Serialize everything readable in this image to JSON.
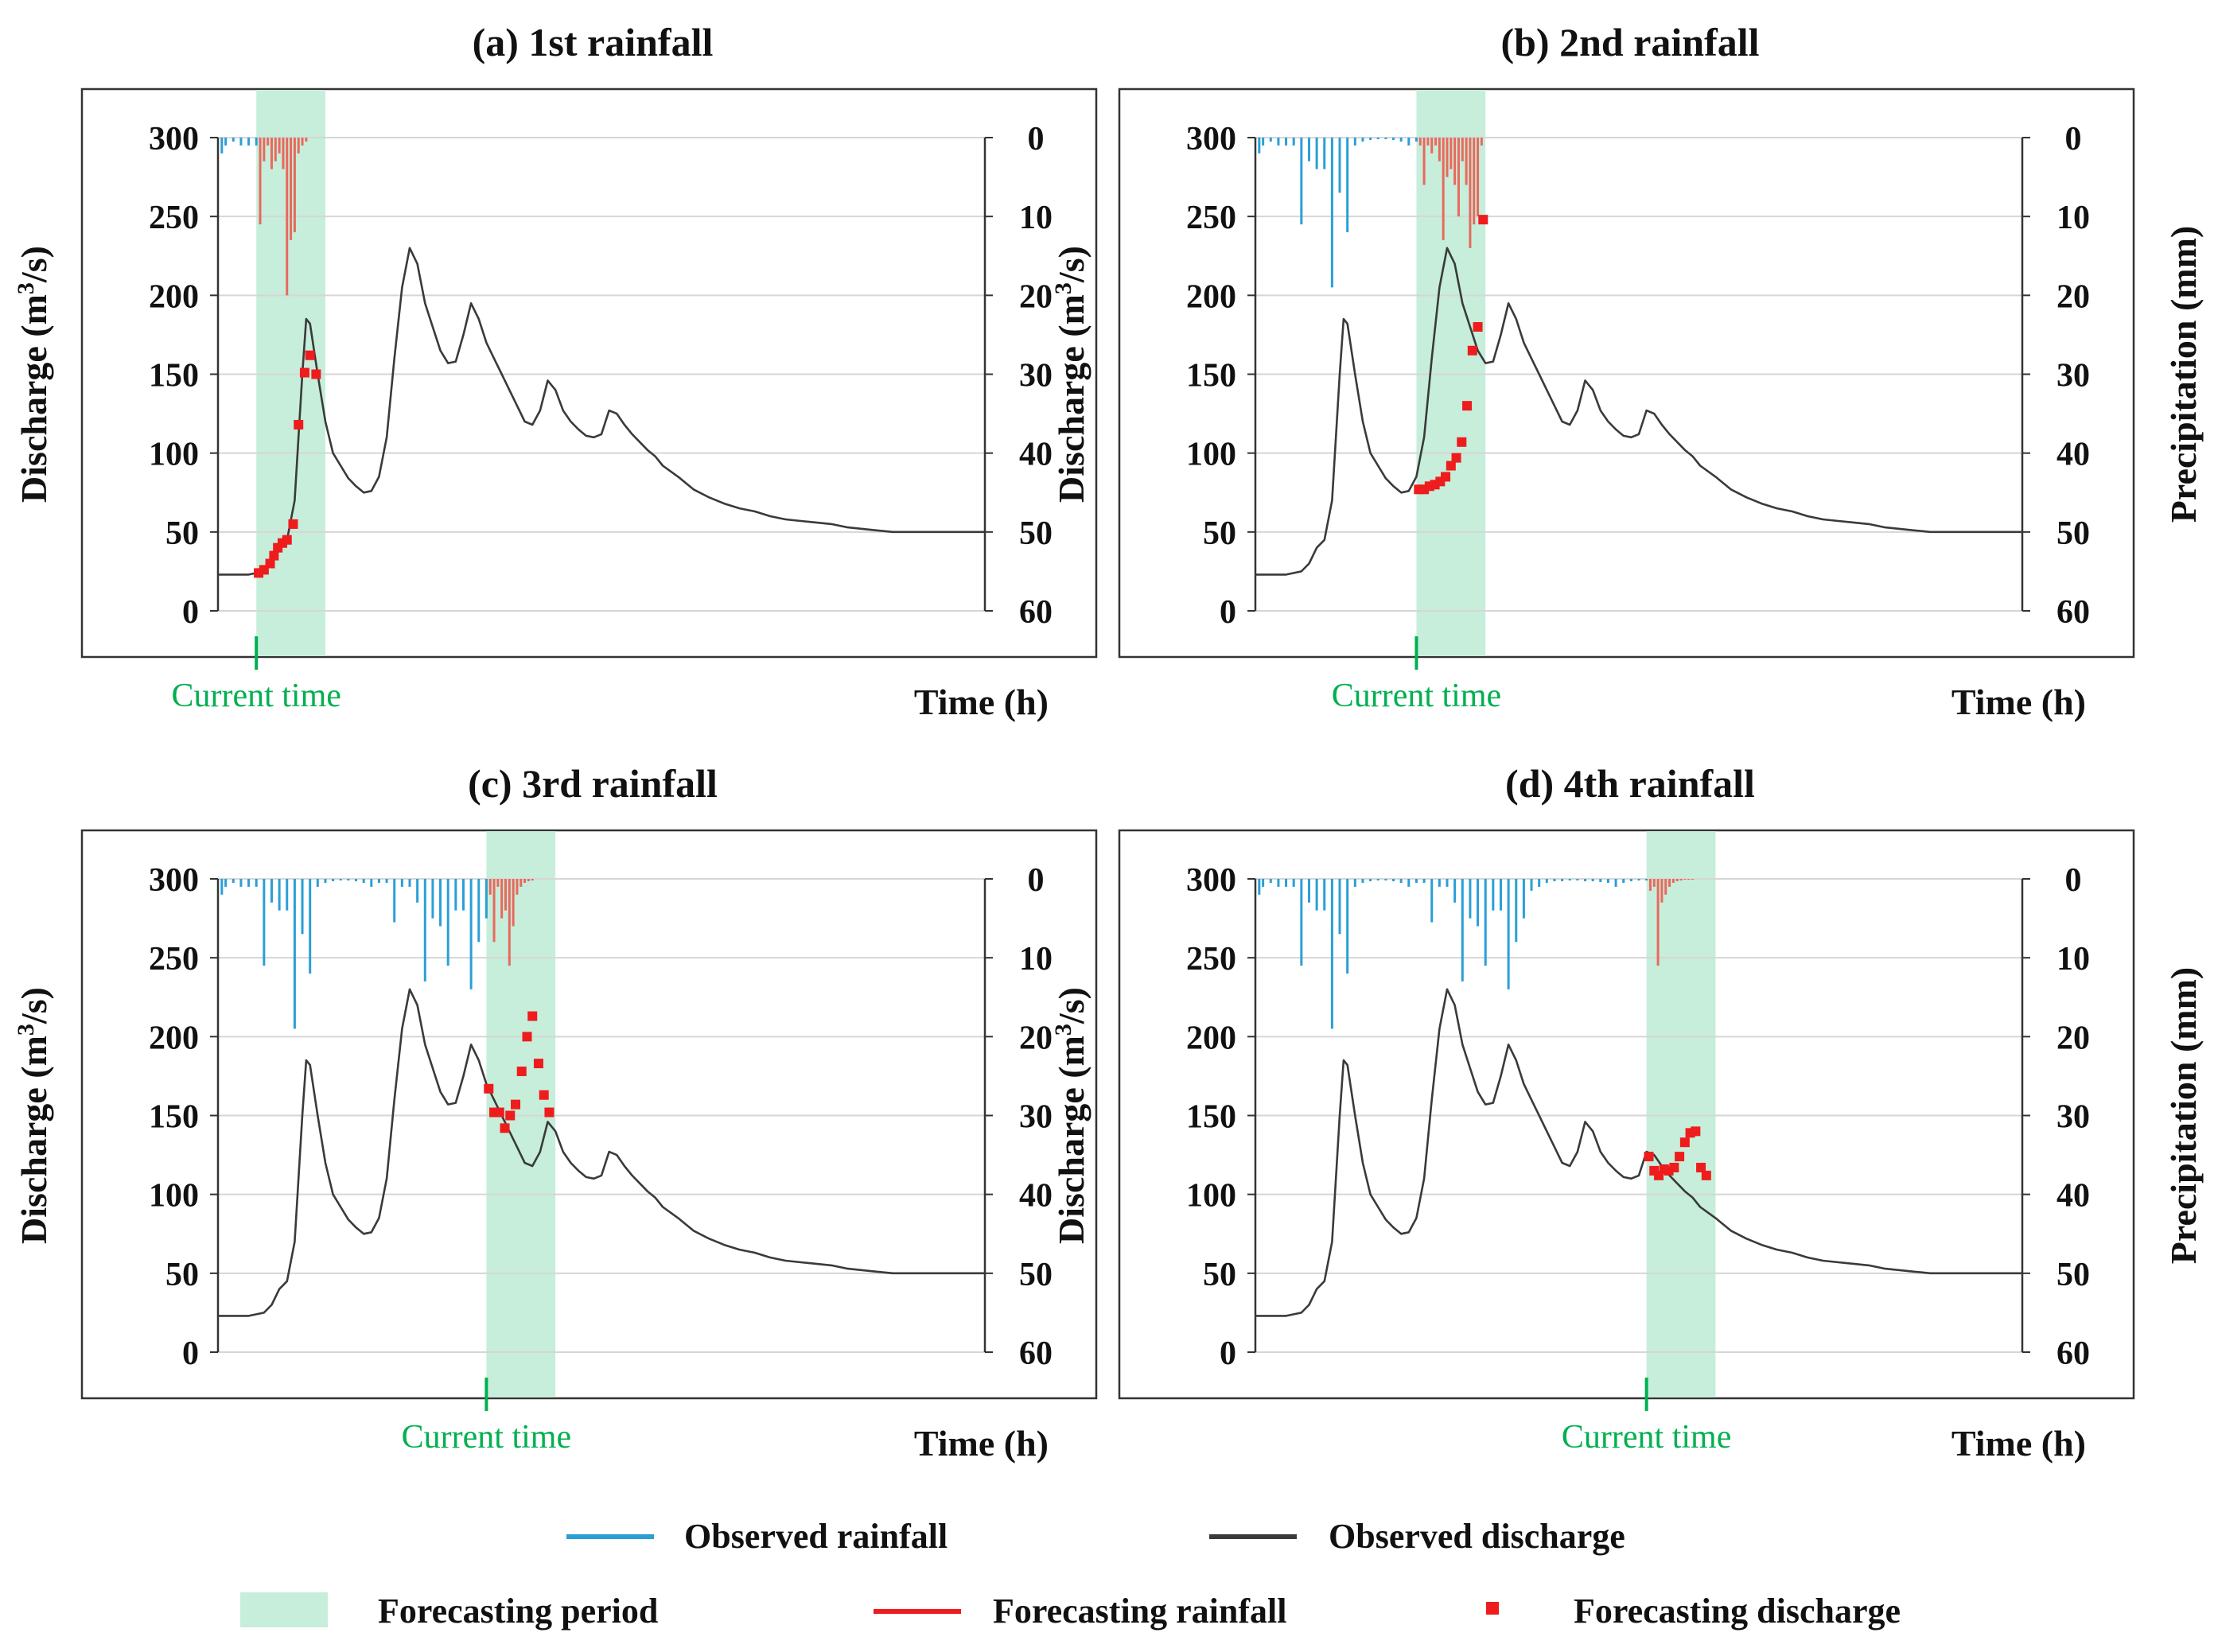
{
  "colors": {
    "observed_rainfall": "#2a9fd6",
    "forecast_rainfall": "#e8695c",
    "observed_discharge": "#3a3a3a",
    "forecast_discharge": "#ee1c1c",
    "forecast_period": "#c6eedb",
    "current_time": "#00b050",
    "grid": "#d6d6d6",
    "frame": "#333333"
  },
  "labels": {
    "discharge_axis": "Discharge (m",
    "discharge_axis_sup": "3",
    "discharge_axis_end": "/s)",
    "precip_axis": "Precipitation (mm)",
    "time_axis": "Time (h)",
    "current_time": "Current time"
  },
  "legend": {
    "observed_rainfall": "Observed rainfall",
    "observed_discharge": "Observed discharge",
    "forecasting_period": "Forecasting period",
    "forecasting_rainfall": "Forecasting rainfall",
    "forecasting_discharge": "Forecasting discharge"
  },
  "axes": {
    "discharge_ticks": [
      0,
      50,
      100,
      150,
      200,
      250,
      300
    ],
    "precip_ticks": [
      0,
      10,
      20,
      30,
      40,
      50,
      60
    ],
    "discharge_range": [
      0,
      300
    ],
    "precip_range": [
      0,
      60
    ],
    "time_range": [
      0,
      100
    ]
  },
  "shared": {
    "observed_discharge": {
      "t": [
        0,
        4,
        6,
        7,
        8,
        9,
        10,
        11,
        11.5,
        12,
        13,
        14,
        15,
        16,
        17,
        18,
        19,
        20,
        21,
        22,
        23,
        24,
        25,
        26,
        27,
        28,
        29,
        30,
        31,
        32,
        33,
        34,
        35,
        36,
        37,
        38,
        39,
        40,
        41,
        42,
        43,
        44,
        45,
        46,
        47,
        48,
        49,
        50,
        51,
        52,
        53,
        54,
        55,
        56,
        57,
        58,
        60,
        62,
        64,
        66,
        68,
        70,
        72,
        74,
        76,
        78,
        80,
        82,
        84,
        86,
        88,
        90,
        92,
        94,
        96,
        98,
        100
      ],
      "q": [
        23,
        23,
        25,
        30,
        40,
        45,
        70,
        150,
        185,
        182,
        150,
        120,
        100,
        92,
        84,
        79,
        75,
        76,
        85,
        110,
        160,
        205,
        230,
        220,
        195,
        180,
        165,
        157,
        158,
        175,
        195,
        185,
        170,
        160,
        150,
        140,
        130,
        120,
        118,
        127,
        146,
        140,
        127,
        120,
        115,
        111,
        110,
        112,
        127,
        125,
        118,
        112,
        107,
        102,
        98,
        92,
        85,
        77,
        72,
        68,
        65,
        63,
        60,
        58,
        57,
        56,
        55,
        53,
        52,
        51,
        50,
        50,
        50,
        50,
        50,
        50,
        50
      ]
    },
    "observed_rainfall_full": {
      "t": [
        0.5,
        1,
        2,
        3,
        4,
        5,
        6,
        7,
        8,
        9,
        10,
        11,
        12,
        13,
        14,
        15,
        16,
        17,
        18,
        19,
        20,
        21,
        22,
        23,
        24,
        25,
        26,
        27,
        28,
        29,
        30,
        31,
        32,
        33,
        34,
        35,
        36,
        37,
        38,
        39,
        40,
        41,
        42,
        43,
        44,
        45,
        46,
        47,
        48,
        49,
        50,
        51,
        52,
        53,
        54,
        55,
        56,
        57,
        58,
        59,
        60,
        61,
        62,
        63,
        64,
        65,
        66,
        67,
        68,
        69,
        70,
        71,
        72,
        73,
        74,
        75,
        76,
        77,
        78,
        79,
        80,
        81
      ],
      "p": [
        2,
        1,
        0.5,
        1,
        1,
        1,
        11,
        3,
        4,
        4,
        19,
        7,
        12,
        1,
        0.5,
        0.3,
        0.2,
        0.2,
        0.3,
        0.5,
        1,
        0.5,
        0.5,
        5.5,
        1,
        1,
        3,
        13,
        5,
        6,
        11,
        4,
        4,
        14,
        8,
        5,
        1.5,
        1,
        0.5,
        0.3,
        0.3,
        0.2,
        0.2,
        0.3,
        0.3,
        0.4,
        0.5,
        1,
        0.5,
        0.3,
        0.2,
        0.2,
        0.2,
        0.2,
        0.2,
        0.2,
        0.2,
        0.2,
        0.2,
        0.2,
        0.2,
        0.3,
        0.3,
        0.3,
        0.3,
        1,
        0.5,
        0.5,
        0.5,
        0.3,
        0.3,
        0.3,
        0.2,
        0.2,
        0.2,
        0.2,
        0.2,
        0.2,
        0.1,
        0.1,
        0.1,
        0.1
      ]
    }
  },
  "chart_data": [
    {
      "type": "line",
      "title": "(a) 1st rainfall",
      "current_time": 5,
      "forecast_period": [
        5,
        14
      ],
      "observed_rainfall_upto": 5,
      "forecast_rainfall": {
        "t": [
          5.5,
          6,
          6.5,
          7,
          7.5,
          8,
          8.5,
          9,
          9.5,
          10,
          10.5,
          11,
          11.5
        ],
        "p": [
          11,
          3,
          1,
          4,
          3,
          2,
          4,
          20,
          13,
          12,
          2,
          1,
          0.5
        ]
      },
      "forecast_discharge": {
        "t": [
          5.3,
          6,
          6.8,
          7.3,
          7.8,
          8.4,
          9,
          9.8,
          10.5,
          11.3,
          12,
          12.8
        ],
        "q": [
          24,
          26,
          30,
          35,
          40,
          43,
          45,
          55,
          118,
          151,
          162,
          150
        ]
      },
      "ylabel_right": false
    },
    {
      "type": "line",
      "title": "(b) 2nd rainfall",
      "current_time": 21,
      "forecast_period": [
        21,
        30
      ],
      "observed_rainfall_upto": 21,
      "forecast_rainfall": {
        "t": [
          21.5,
          22,
          22.5,
          23,
          23.5,
          24,
          24.5,
          25,
          25.5,
          26,
          26.5,
          27,
          27.5,
          28,
          28.5,
          29,
          29.5
        ],
        "p": [
          1,
          6,
          1,
          2,
          1,
          3,
          13,
          5,
          4,
          6,
          10,
          3,
          6,
          14,
          11,
          10,
          1
        ]
      },
      "forecast_discharge": {
        "t": [
          21.3,
          22,
          22.7,
          23.4,
          24.1,
          24.8,
          25.5,
          26.2,
          26.9,
          27.6,
          28.3,
          29,
          29.7
        ],
        "q": [
          77,
          77,
          79,
          80,
          82,
          85,
          92,
          97,
          107,
          130,
          165,
          180,
          248
        ]
      },
      "ylabel_right": true
    },
    {
      "type": "line",
      "title": "(c) 3rd rainfall",
      "current_time": 35,
      "forecast_period": [
        35,
        44
      ],
      "observed_rainfall_upto": 35,
      "forecast_rainfall": {
        "t": [
          35.5,
          36,
          36.5,
          37,
          37.5,
          38,
          38.5,
          39,
          39.5,
          40,
          40.5,
          41
        ],
        "p": [
          2,
          8,
          1,
          5,
          4,
          11,
          6,
          2,
          1,
          0.5,
          0.3,
          0.2
        ]
      },
      "forecast_discharge": {
        "t": [
          35.3,
          36,
          36.7,
          37.4,
          38.1,
          38.8,
          39.6,
          40.3,
          41,
          41.8,
          42.5,
          43.2
        ],
        "q": [
          167,
          152,
          152,
          142,
          150,
          157,
          178,
          200,
          213,
          183,
          163,
          152
        ]
      },
      "ylabel_right": false
    },
    {
      "type": "line",
      "title": "(d) 4th rainfall",
      "current_time": 51,
      "forecast_period": [
        51,
        60
      ],
      "observed_rainfall_upto": 51,
      "forecast_rainfall": {
        "t": [
          51.5,
          52,
          52.5,
          53,
          53.5,
          54,
          54.5,
          55,
          55.5,
          56,
          56.5,
          57
        ],
        "p": [
          1.5,
          1,
          11,
          3,
          2,
          1,
          0.5,
          0.3,
          0.2,
          0.1,
          0.1,
          0.1
        ]
      },
      "forecast_discharge": {
        "t": [
          51.3,
          52,
          52.6,
          53.3,
          53.9,
          54.6,
          55.3,
          56,
          56.7,
          57.4,
          58.1,
          58.8
        ],
        "q": [
          124,
          115,
          112,
          116,
          115,
          117,
          124,
          133,
          139,
          140,
          117,
          112
        ]
      },
      "ylabel_right": true
    }
  ]
}
